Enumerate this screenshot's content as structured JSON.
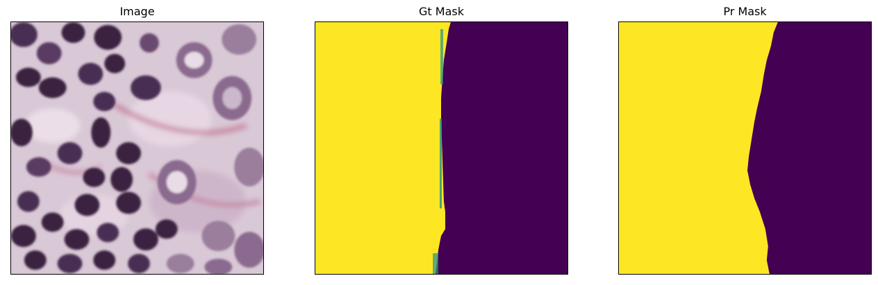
{
  "panels": [
    {
      "title": "Image"
    },
    {
      "title": "Gt Mask"
    },
    {
      "title": "Pr Mask"
    }
  ],
  "colors": {
    "mask_foreground": "#fde725",
    "mask_background": "#440154",
    "mask_edge_noise": "#21918c",
    "tissue_base": "#d9c8d6",
    "nucleus_dark": "#3a2440",
    "nucleus_mid": "#6a4a70",
    "stroma_pink": "#c07090"
  }
}
